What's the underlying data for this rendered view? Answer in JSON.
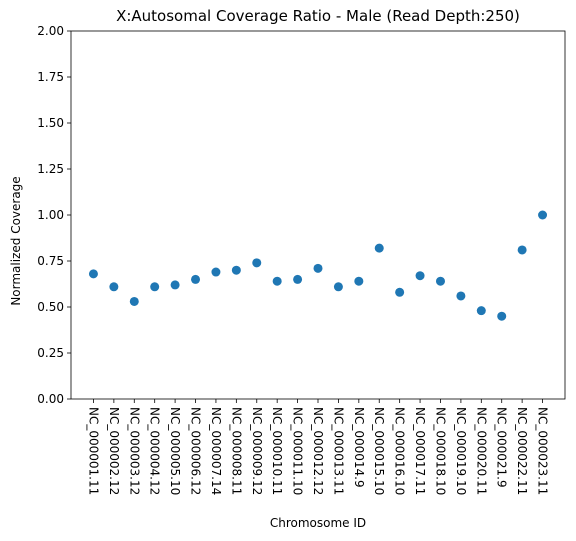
{
  "chart_data": {
    "type": "scatter",
    "title": "X:Autosomal Coverage Ratio - Male (Read Depth:250)",
    "xlabel": "Chromosome ID",
    "ylabel": "Normalized Coverage",
    "ylim": [
      0,
      2
    ],
    "yticks": [
      "0.00",
      "0.25",
      "0.50",
      "0.75",
      "1.00",
      "1.25",
      "1.50",
      "1.75",
      "2.00"
    ],
    "grid": false,
    "color": "#1f77b4",
    "categories": [
      "NC_000001.11",
      "NC_000002.12",
      "NC_000003.12",
      "NC_000004.12",
      "NC_000005.10",
      "NC_000006.12",
      "NC_000007.14",
      "NC_000008.11",
      "NC_000009.12",
      "NC_000010.11",
      "NC_000011.10",
      "NC_000012.12",
      "NC_000013.11",
      "NC_000014.9",
      "NC_000015.10",
      "NC_000016.10",
      "NC_000017.11",
      "NC_000018.10",
      "NC_000019.10",
      "NC_000020.11",
      "NC_000021.9",
      "NC_000022.11",
      "NC_000023.11"
    ],
    "values": [
      0.68,
      0.61,
      0.53,
      0.61,
      0.62,
      0.65,
      0.69,
      0.7,
      0.74,
      0.64,
      0.65,
      0.71,
      0.61,
      0.64,
      0.82,
      0.58,
      0.67,
      0.64,
      0.56,
      0.48,
      0.45,
      0.81,
      1.0
    ]
  }
}
